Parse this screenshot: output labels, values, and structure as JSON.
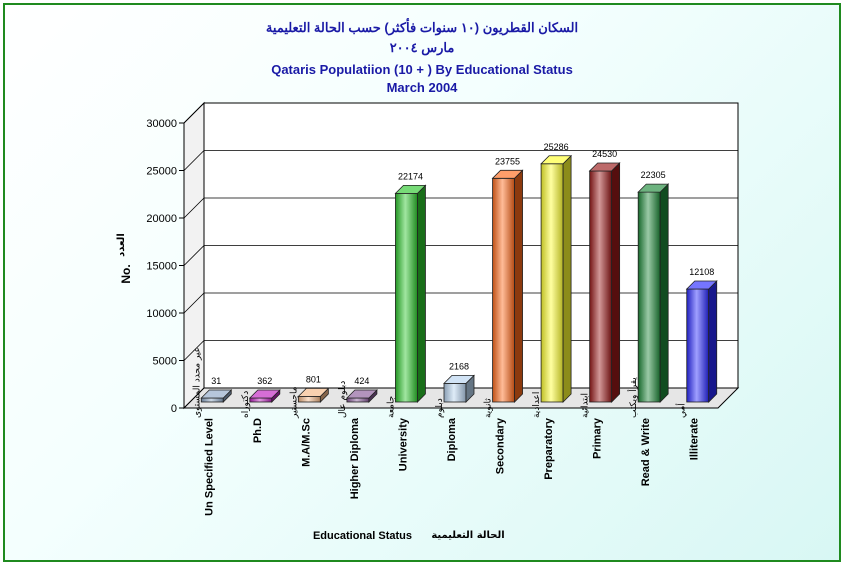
{
  "chart_data": {
    "type": "bar",
    "title_ar": "السكان القطريون (١٠ سنوات فأكثر) حسب الحالة التعليمية",
    "subtitle_ar": "مارس ٢٠٠٤",
    "title": "Qataris Populatiion (10 + ) By Educational Status",
    "subtitle": "March 2004",
    "ylabel": "No.",
    "ylabel_ar": "العدد",
    "xlabel": "Educational Status",
    "xlabel_ar": "الحالة التعليمية",
    "ylim": [
      0,
      30000
    ],
    "yticks": [
      "0",
      "5000",
      "10000",
      "15000",
      "20000",
      "25000",
      "30000"
    ],
    "categories": [
      {
        "en": "Un Specified Level",
        "ar": "غير محدد المستوى"
      },
      {
        "en": "Ph.D",
        "ar": "دكتوراه"
      },
      {
        "en": "M.A/M.Sc",
        "ar": "ماجستير"
      },
      {
        "en": "Higher Diploma",
        "ar": "دبلوم عال"
      },
      {
        "en": "University",
        "ar": "جامعة"
      },
      {
        "en": "Diploma",
        "ar": "دبلوم"
      },
      {
        "en": "Secondary",
        "ar": "ثانوية"
      },
      {
        "en": "Preparatory",
        "ar": "اعدادية"
      },
      {
        "en": "Primary",
        "ar": "ابتدائية"
      },
      {
        "en": "Read & Write",
        "ar": "يقرأ ويكتب"
      },
      {
        "en": "Illiterate",
        "ar": "أمي"
      }
    ],
    "values": [
      31,
      362,
      801,
      424,
      22174,
      2168,
      23755,
      25286,
      24530,
      22305,
      12108
    ],
    "value_labels": [
      "31",
      "362",
      "801",
      "424",
      "22174",
      "2168",
      "23755",
      "25286",
      "24530",
      "22305",
      "12108"
    ],
    "colors": [
      "#8ea8c8",
      "#c020c0",
      "#f4b886",
      "#8a5a9a",
      "#2ec82e",
      "#b8d4f0",
      "#ff6a1a",
      "#ffff30",
      "#9a1a1a",
      "#1f8a3a",
      "#2a2aff"
    ],
    "grid": true
  }
}
